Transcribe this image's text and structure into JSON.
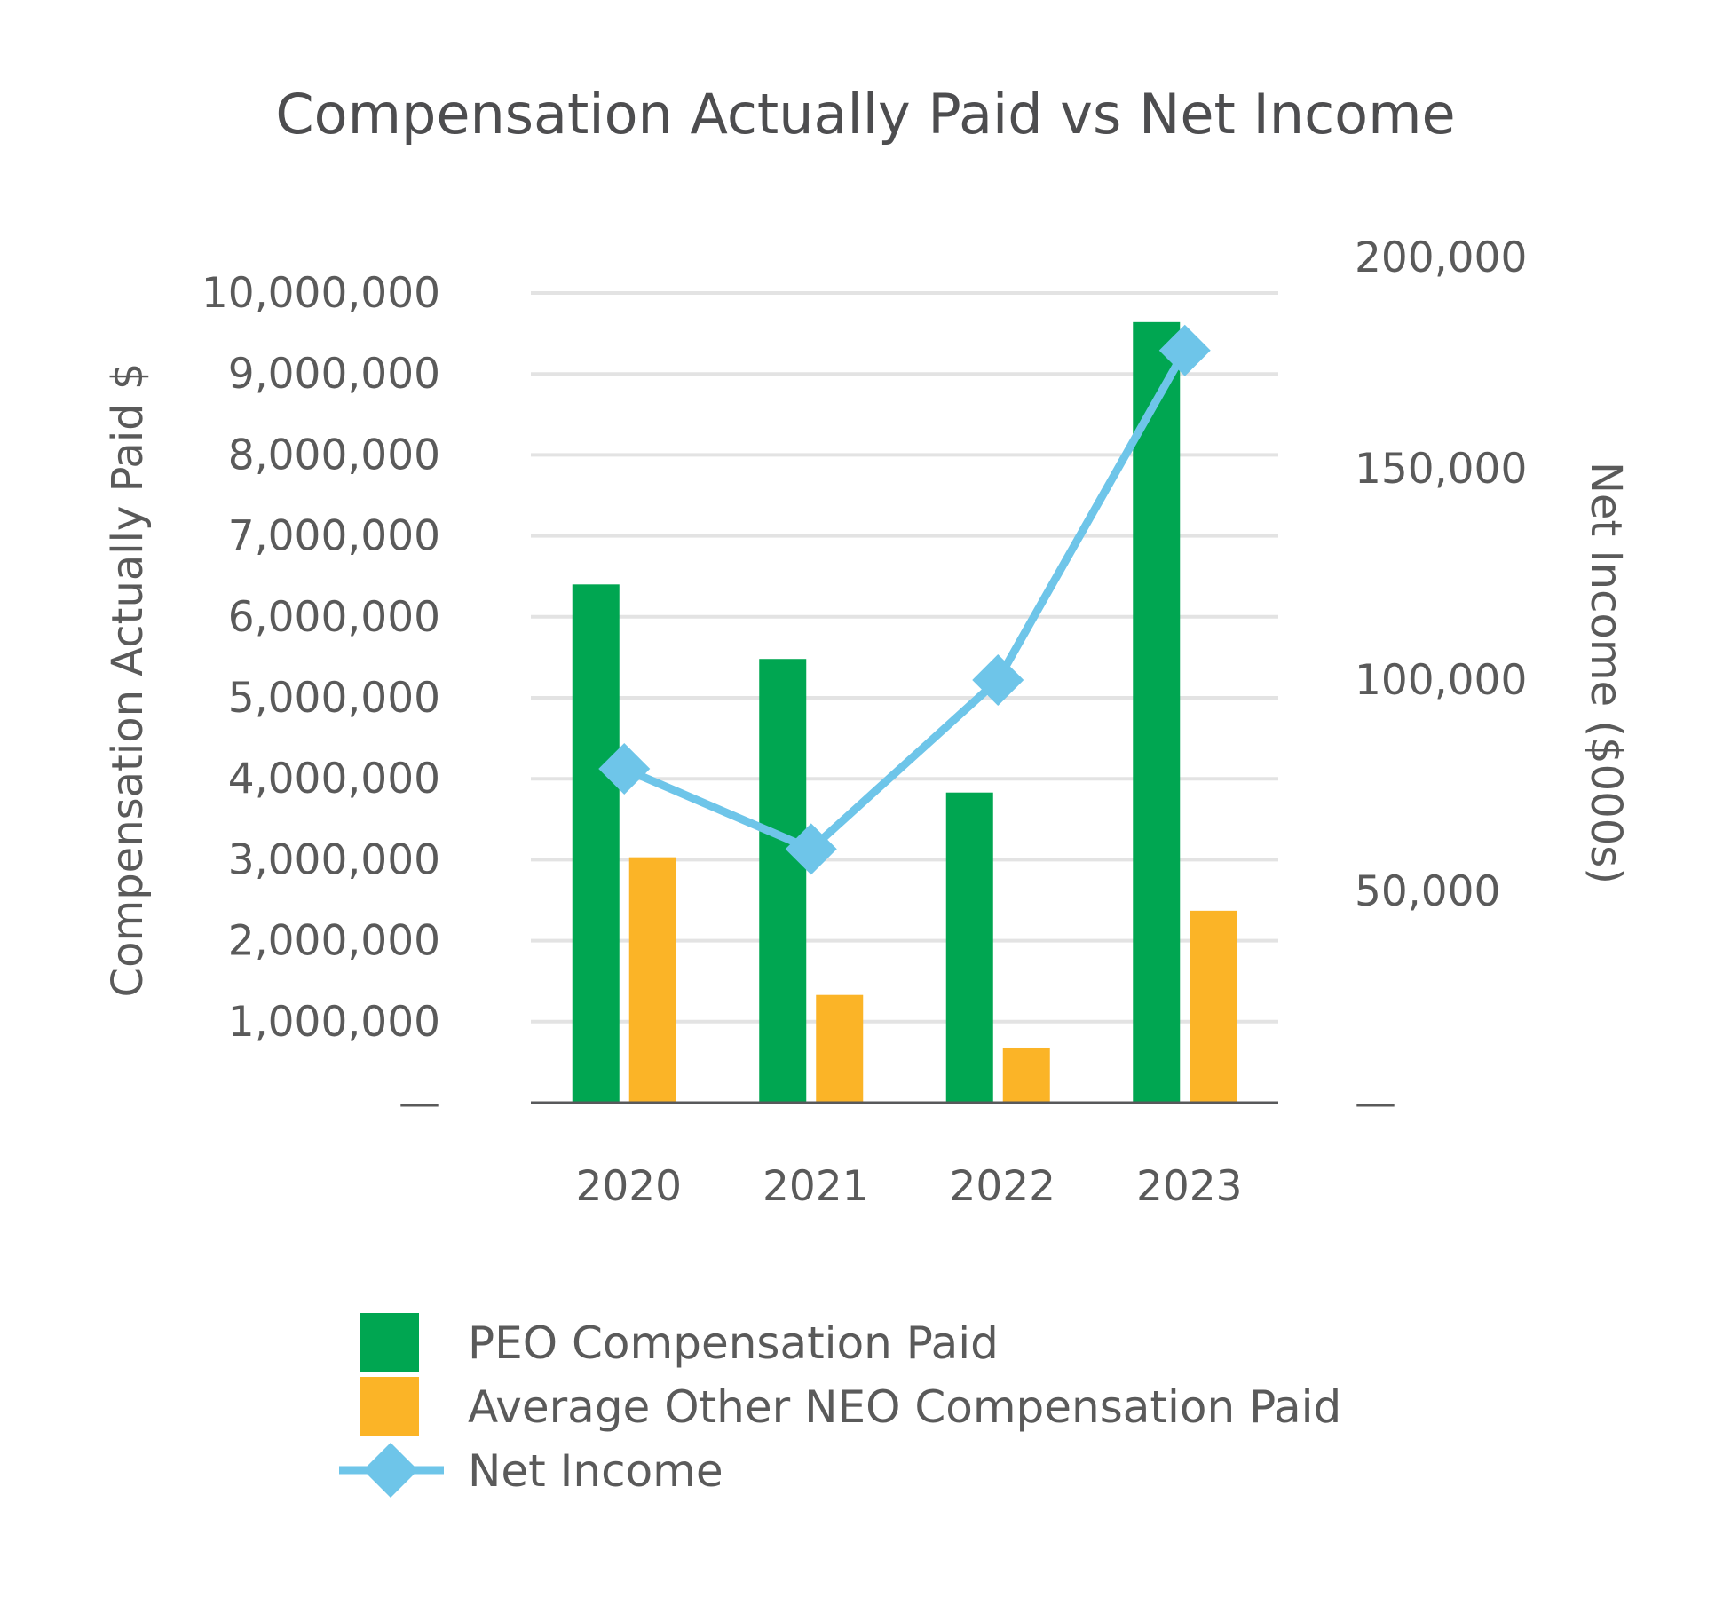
{
  "chart_data": {
    "type": "bar",
    "title": "Compensation Actually Paid vs Net Income",
    "categories": [
      "2020",
      "2021",
      "2022",
      "2023"
    ],
    "ylabel": "Compensation Actually Paid $",
    "y2label": "Net Income ($000s)",
    "ylim": [
      0,
      10000000
    ],
    "y2lim": [
      0,
      190000
    ],
    "y_ticks": [
      "—",
      "1,000,000",
      "2,000,000",
      "3,000,000",
      "4,000,000",
      "5,000,000",
      "6,000,000",
      "7,000,000",
      "8,000,000",
      "9,000,000",
      "10,000,000"
    ],
    "y_tick_values": [
      0,
      1000000,
      2000000,
      3000000,
      4000000,
      5000000,
      6000000,
      7000000,
      8000000,
      9000000,
      10000000
    ],
    "y2_ticks": [
      "—",
      "50,000",
      "100,000",
      "150,000",
      "200,000"
    ],
    "y2_tick_values": [
      0,
      50000,
      100000,
      150000,
      200000
    ],
    "grid": true,
    "legend_position": "bottom",
    "series": [
      {
        "name": "PEO Compensation Paid",
        "kind": "bar",
        "axis": "left",
        "color": "#00a651",
        "values": [
          6400000,
          5480000,
          3830000,
          9640000
        ]
      },
      {
        "name": "Average Other NEO Compensation Paid",
        "kind": "bar",
        "axis": "left",
        "color": "#fbb427",
        "values": [
          3030000,
          1330000,
          680000,
          2370000
        ]
      },
      {
        "name": "Net Income",
        "kind": "line",
        "axis": "right",
        "color": "#6ec5e9",
        "marker": "diamond",
        "values": [
          79000,
          60000,
          100000,
          178000
        ]
      }
    ]
  }
}
